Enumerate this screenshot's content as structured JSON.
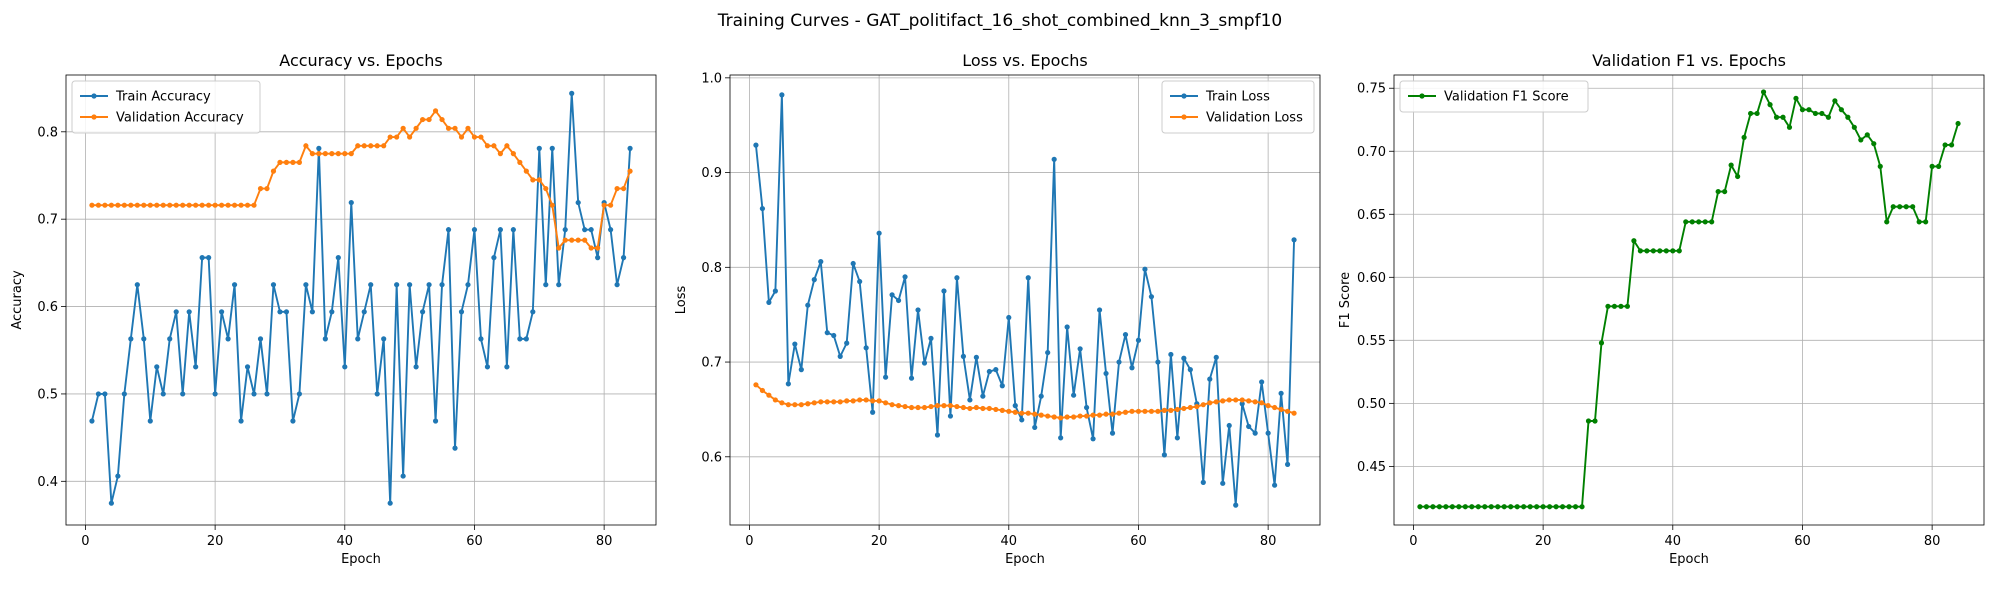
{
  "figure": {
    "suptitle": "Training Curves - GAT_politifact_16_shot_combined_knn_3_smpf10"
  },
  "colors": {
    "blue": "#1f77b4",
    "orange": "#ff7f0e",
    "green": "#008000"
  },
  "chart_data": [
    {
      "type": "line",
      "title": "Accuracy vs. Epochs",
      "xlabel": "Epoch",
      "ylabel": "Accuracy",
      "xlim": [
        -3,
        88
      ],
      "ylim": [
        0.35,
        0.865
      ],
      "xticks": [
        0,
        20,
        40,
        60,
        80
      ],
      "yticks": [
        0.4,
        0.5,
        0.6,
        0.7,
        0.8
      ],
      "tick_decimals": 1,
      "grid": true,
      "legend_position": "upper-left",
      "series": [
        {
          "name": "Train Accuracy",
          "color": "#1f77b4",
          "x_start": 1,
          "values": [
            0.469,
            0.5,
            0.5,
            0.375,
            0.406,
            0.5,
            0.563,
            0.625,
            0.563,
            0.469,
            0.531,
            0.5,
            0.563,
            0.594,
            0.5,
            0.594,
            0.531,
            0.656,
            0.656,
            0.5,
            0.594,
            0.563,
            0.625,
            0.469,
            0.531,
            0.5,
            0.563,
            0.5,
            0.625,
            0.594,
            0.594,
            0.469,
            0.5,
            0.625,
            0.594,
            0.781,
            0.563,
            0.594,
            0.656,
            0.531,
            0.719,
            0.563,
            0.594,
            0.625,
            0.5,
            0.563,
            0.375,
            0.625,
            0.406,
            0.625,
            0.531,
            0.594,
            0.625,
            0.469,
            0.625,
            0.688,
            0.438,
            0.594,
            0.625,
            0.688,
            0.563,
            0.531,
            0.656,
            0.688,
            0.531,
            0.688,
            0.563,
            0.563,
            0.594,
            0.781,
            0.625,
            0.781,
            0.625,
            0.688,
            0.844,
            0.719,
            0.688,
            0.688,
            0.656,
            0.719,
            0.688,
            0.625,
            0.656,
            0.781
          ]
        },
        {
          "name": "Validation Accuracy",
          "color": "#ff7f0e",
          "x_start": 1,
          "values": [
            0.716,
            0.716,
            0.716,
            0.716,
            0.716,
            0.716,
            0.716,
            0.716,
            0.716,
            0.716,
            0.716,
            0.716,
            0.716,
            0.716,
            0.716,
            0.716,
            0.716,
            0.716,
            0.716,
            0.716,
            0.716,
            0.716,
            0.716,
            0.716,
            0.716,
            0.716,
            0.735,
            0.735,
            0.755,
            0.765,
            0.765,
            0.765,
            0.765,
            0.784,
            0.775,
            0.775,
            0.775,
            0.775,
            0.775,
            0.775,
            0.775,
            0.784,
            0.784,
            0.784,
            0.784,
            0.784,
            0.794,
            0.794,
            0.804,
            0.794,
            0.804,
            0.814,
            0.814,
            0.824,
            0.814,
            0.804,
            0.804,
            0.794,
            0.804,
            0.794,
            0.794,
            0.784,
            0.784,
            0.775,
            0.784,
            0.775,
            0.765,
            0.755,
            0.745,
            0.745,
            0.735,
            0.716,
            0.667,
            0.676,
            0.676,
            0.676,
            0.676,
            0.667,
            0.667,
            0.716,
            0.716,
            0.735,
            0.735,
            0.755
          ]
        }
      ]
    },
    {
      "type": "line",
      "title": "Loss vs. Epochs",
      "xlabel": "Epoch",
      "ylabel": "Loss",
      "xlim": [
        -3,
        88
      ],
      "ylim": [
        0.528,
        1.003
      ],
      "xticks": [
        0,
        20,
        40,
        60,
        80
      ],
      "yticks": [
        0.6,
        0.7,
        0.8,
        0.9,
        1.0
      ],
      "tick_decimals": 1,
      "grid": true,
      "legend_position": "upper-right",
      "series": [
        {
          "name": "Train Loss",
          "color": "#1f77b4",
          "x_start": 1,
          "values": [
            0.929,
            0.862,
            0.763,
            0.775,
            0.982,
            0.677,
            0.719,
            0.692,
            0.76,
            0.787,
            0.806,
            0.731,
            0.728,
            0.706,
            0.72,
            0.804,
            0.785,
            0.715,
            0.647,
            0.836,
            0.684,
            0.771,
            0.765,
            0.79,
            0.683,
            0.755,
            0.699,
            0.725,
            0.623,
            0.775,
            0.643,
            0.789,
            0.706,
            0.66,
            0.705,
            0.664,
            0.69,
            0.692,
            0.675,
            0.747,
            0.654,
            0.639,
            0.789,
            0.631,
            0.664,
            0.71,
            0.914,
            0.62,
            0.737,
            0.665,
            0.714,
            0.652,
            0.619,
            0.755,
            0.688,
            0.625,
            0.7,
            0.729,
            0.694,
            0.723,
            0.798,
            0.769,
            0.7,
            0.602,
            0.708,
            0.62,
            0.704,
            0.692,
            0.656,
            0.573,
            0.682,
            0.705,
            0.572,
            0.633,
            0.549,
            0.656,
            0.632,
            0.625,
            0.679,
            0.625,
            0.57,
            0.667,
            0.592,
            0.829
          ]
        },
        {
          "name": "Validation Loss",
          "color": "#ff7f0e",
          "x_start": 1,
          "values": [
            0.676,
            0.67,
            0.665,
            0.66,
            0.657,
            0.655,
            0.655,
            0.655,
            0.656,
            0.657,
            0.658,
            0.658,
            0.658,
            0.658,
            0.659,
            0.659,
            0.66,
            0.66,
            0.659,
            0.659,
            0.657,
            0.655,
            0.654,
            0.653,
            0.652,
            0.652,
            0.652,
            0.653,
            0.654,
            0.654,
            0.654,
            0.653,
            0.652,
            0.651,
            0.652,
            0.651,
            0.651,
            0.65,
            0.649,
            0.648,
            0.647,
            0.646,
            0.646,
            0.645,
            0.644,
            0.643,
            0.642,
            0.641,
            0.642,
            0.642,
            0.643,
            0.643,
            0.644,
            0.644,
            0.645,
            0.645,
            0.646,
            0.647,
            0.648,
            0.648,
            0.648,
            0.648,
            0.648,
            0.649,
            0.649,
            0.65,
            0.651,
            0.652,
            0.653,
            0.655,
            0.657,
            0.658,
            0.659,
            0.66,
            0.66,
            0.66,
            0.659,
            0.658,
            0.657,
            0.654,
            0.652,
            0.65,
            0.648,
            0.646
          ]
        }
      ]
    },
    {
      "type": "line",
      "title": "Validation F1 vs. Epochs",
      "xlabel": "Epoch",
      "ylabel": "F1 Score",
      "xlim": [
        -3,
        88
      ],
      "ylim": [
        0.4035,
        0.7605
      ],
      "xticks": [
        0,
        20,
        40,
        60,
        80
      ],
      "yticks": [
        0.45,
        0.5,
        0.55,
        0.6,
        0.65,
        0.7,
        0.75
      ],
      "tick_decimals": 2,
      "grid": true,
      "legend_position": "upper-left",
      "series": [
        {
          "name": "Validation F1 Score",
          "color": "#008000",
          "x_start": 1,
          "values": [
            0.418,
            0.418,
            0.418,
            0.418,
            0.418,
            0.418,
            0.418,
            0.418,
            0.418,
            0.418,
            0.418,
            0.418,
            0.418,
            0.418,
            0.418,
            0.418,
            0.418,
            0.418,
            0.418,
            0.418,
            0.418,
            0.418,
            0.418,
            0.418,
            0.418,
            0.418,
            0.486,
            0.486,
            0.548,
            0.577,
            0.577,
            0.577,
            0.577,
            0.629,
            0.621,
            0.621,
            0.621,
            0.621,
            0.621,
            0.621,
            0.621,
            0.644,
            0.644,
            0.644,
            0.644,
            0.644,
            0.668,
            0.668,
            0.689,
            0.68,
            0.711,
            0.73,
            0.73,
            0.747,
            0.737,
            0.727,
            0.727,
            0.719,
            0.742,
            0.733,
            0.733,
            0.73,
            0.73,
            0.727,
            0.74,
            0.733,
            0.727,
            0.719,
            0.709,
            0.713,
            0.706,
            0.688,
            0.644,
            0.656,
            0.656,
            0.656,
            0.656,
            0.644,
            0.644,
            0.688,
            0.688,
            0.705,
            0.705,
            0.722
          ]
        }
      ]
    }
  ]
}
